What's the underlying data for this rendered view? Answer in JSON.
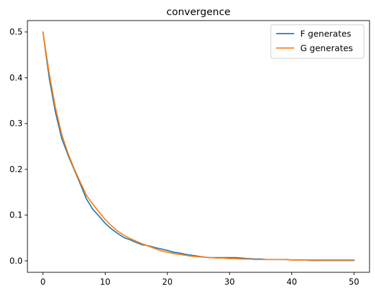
{
  "chart_data": {
    "type": "line",
    "title": "convergence",
    "xlabel": "",
    "ylabel": "",
    "xlim": [
      -2.5,
      52.5
    ],
    "ylim": [
      -0.025,
      0.525
    ],
    "xticks": [
      0,
      10,
      20,
      30,
      40,
      50
    ],
    "yticks": [
      0.0,
      0.1,
      0.2,
      0.3,
      0.4,
      0.5
    ],
    "xtick_labels": [
      "0",
      "10",
      "20",
      "30",
      "40",
      "50"
    ],
    "ytick_labels": [
      "0.0",
      "0.1",
      "0.2",
      "0.3",
      "0.4",
      "0.5"
    ],
    "grid": false,
    "legend_position": "top-right",
    "x": [
      0,
      1,
      2,
      3,
      4,
      5,
      6,
      7,
      8,
      9,
      10,
      11,
      12,
      13,
      14,
      15,
      16,
      17,
      18,
      19,
      20,
      21,
      22,
      23,
      24,
      25,
      26,
      27,
      28,
      29,
      30,
      31,
      32,
      33,
      34,
      35,
      36,
      37,
      38,
      39,
      40,
      41,
      42,
      43,
      44,
      45,
      46,
      47,
      48,
      49,
      50
    ],
    "series": [
      {
        "name": "F generates",
        "color": "#1f77b4",
        "values": [
          0.5,
          0.4,
          0.325,
          0.268,
          0.232,
          0.2,
          0.168,
          0.135,
          0.113,
          0.098,
          0.082,
          0.07,
          0.06,
          0.051,
          0.046,
          0.04,
          0.035,
          0.033,
          0.029,
          0.026,
          0.023,
          0.019,
          0.017,
          0.014,
          0.012,
          0.01,
          0.008,
          0.007,
          0.007,
          0.007,
          0.007,
          0.007,
          0.006,
          0.005,
          0.004,
          0.004,
          0.003,
          0.003,
          0.003,
          0.003,
          0.002,
          0.002,
          0.002,
          0.001,
          0.001,
          0.001,
          0.001,
          0.001,
          0.001,
          0.001,
          0.001
        ]
      },
      {
        "name": "G generates",
        "color": "#ff7f0e",
        "values": [
          0.5,
          0.41,
          0.335,
          0.277,
          0.236,
          0.202,
          0.172,
          0.143,
          0.124,
          0.107,
          0.09,
          0.077,
          0.065,
          0.056,
          0.049,
          0.043,
          0.037,
          0.032,
          0.027,
          0.022,
          0.019,
          0.016,
          0.014,
          0.012,
          0.01,
          0.009,
          0.008,
          0.007,
          0.006,
          0.006,
          0.005,
          0.005,
          0.004,
          0.004,
          0.003,
          0.003,
          0.003,
          0.003,
          0.003,
          0.003,
          0.002,
          0.002,
          0.002,
          0.002,
          0.002,
          0.002,
          0.002,
          0.002,
          0.002,
          0.002,
          0.002
        ]
      }
    ]
  }
}
